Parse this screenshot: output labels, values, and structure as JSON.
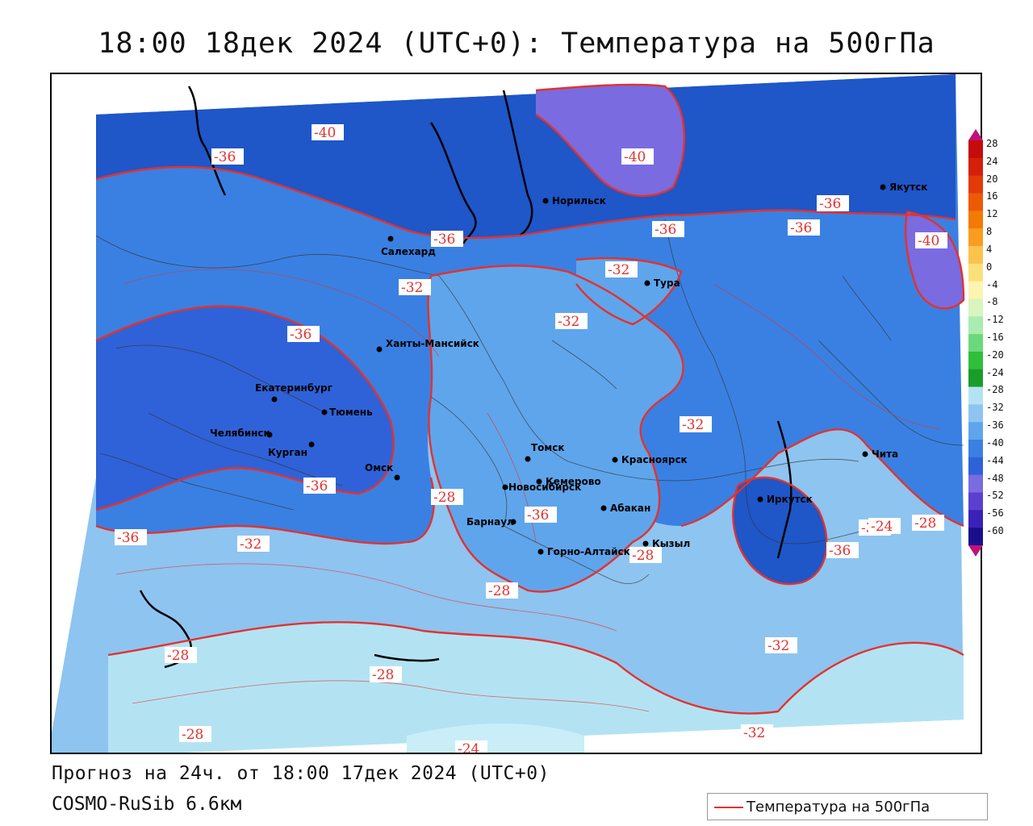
{
  "title": "18:00 18дек 2024 (UTC+0): Температура на 500гПа",
  "footer": {
    "forecast": "Прогноз на 24ч. от 18:00 17дек 2024 (UTC+0)",
    "model": "COSMO-RuSib 6.6км"
  },
  "legend": {
    "label": "Температура на 500гПа",
    "line_color": "#e3322e"
  },
  "colorbar": {
    "labels": [
      "28",
      "24",
      "20",
      "16",
      "12",
      "8",
      "4",
      "0",
      "-4",
      "-8",
      "-12",
      "-16",
      "-20",
      "-24",
      "-28",
      "-32",
      "-36",
      "-40",
      "-44",
      "-48",
      "-52",
      "-56",
      "-60"
    ],
    "colors": [
      "#c40c0c",
      "#d4200a",
      "#e23a08",
      "#ec5a06",
      "#f37a05",
      "#f99c20",
      "#fbc24c",
      "#fbe07a",
      "#fdf4b0",
      "#d8f5c0",
      "#a8ecb0",
      "#6cd87e",
      "#2fbf3a",
      "#1a9c2a",
      "#b3e3f3",
      "#8ec4f0",
      "#5fa5ec",
      "#3a80e2",
      "#2f62d8",
      "#7a6be0",
      "#5b3fd0",
      "#3a22b8",
      "#1a0f8a"
    ],
    "top_arrow": "#c0127a",
    "bottom_arrow": "#c0127a"
  },
  "contour_labels": [
    {
      "text": "-40"
    },
    {
      "text": "-36"
    },
    {
      "text": "-40"
    },
    {
      "text": "-36"
    },
    {
      "text": "-36"
    },
    {
      "text": "-36"
    },
    {
      "text": "-36"
    },
    {
      "text": "-40"
    },
    {
      "text": "-32"
    },
    {
      "text": "-32"
    },
    {
      "text": "-32"
    },
    {
      "text": "-36"
    },
    {
      "text": "-32"
    },
    {
      "text": "-32"
    },
    {
      "text": "-36"
    },
    {
      "text": "-32"
    },
    {
      "text": "-36"
    },
    {
      "text": "-36"
    },
    {
      "text": "-32"
    },
    {
      "text": "-28"
    },
    {
      "text": "-28"
    },
    {
      "text": "-28"
    },
    {
      "text": "-28"
    },
    {
      "text": "-32"
    },
    {
      "text": "-28"
    },
    {
      "text": "-24"
    },
    {
      "text": "-24"
    },
    {
      "text": "-36"
    },
    {
      "text": "-28"
    },
    {
      "text": "-28"
    }
  ],
  "cities": [
    {
      "name": "Норильск"
    },
    {
      "name": "Якутск"
    },
    {
      "name": "Салехард"
    },
    {
      "name": "Тура"
    },
    {
      "name": "Ханты-Мансийск"
    },
    {
      "name": "Екатеринбург"
    },
    {
      "name": "Тюмень"
    },
    {
      "name": "Челябинск"
    },
    {
      "name": "Курган"
    },
    {
      "name": "Омск"
    },
    {
      "name": "Новосибирск"
    },
    {
      "name": "Томск"
    },
    {
      "name": "Кемерово"
    },
    {
      "name": "Красноярск"
    },
    {
      "name": "Барнаул"
    },
    {
      "name": "Абакан"
    },
    {
      "name": "Горно-Алтайск"
    },
    {
      "name": "Кызыл"
    },
    {
      "name": "Иркутск"
    },
    {
      "name": "Чита"
    }
  ]
}
